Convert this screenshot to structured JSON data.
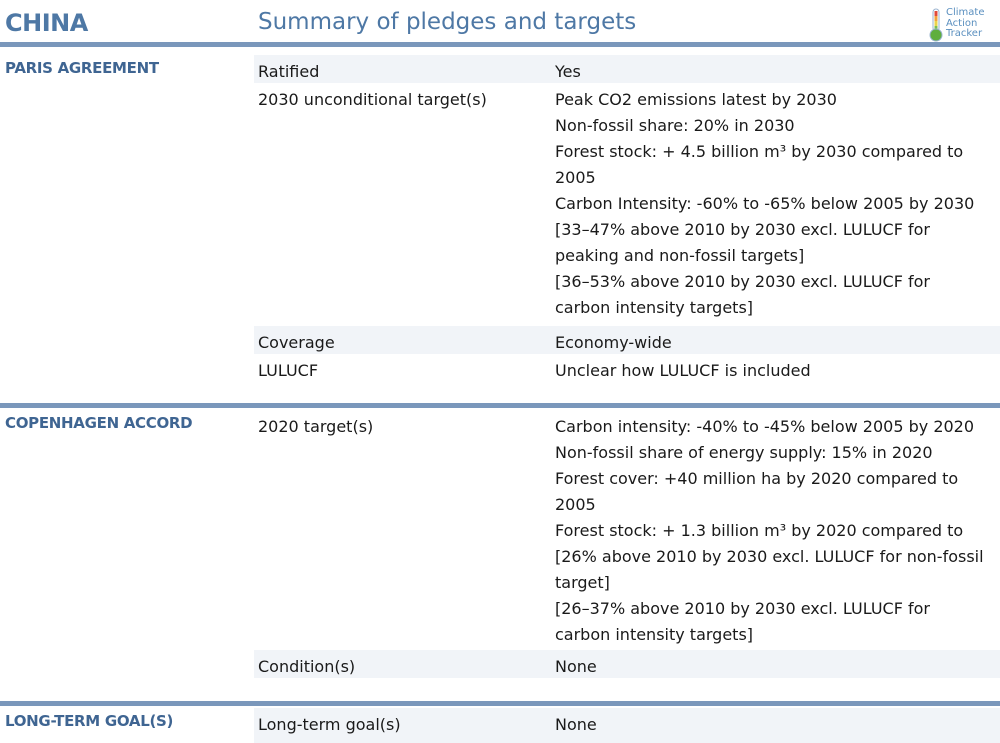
{
  "header": {
    "country": "CHINA",
    "title": "Summary of pledges and targets",
    "logo_lines": [
      "Climate",
      "Action",
      "Tracker"
    ]
  },
  "sections": [
    {
      "label": "PARIS AGREEMENT",
      "rows": [
        {
          "label": "Ratified",
          "lines": [
            "Yes"
          ]
        },
        {
          "label": "2030 unconditional target(s)",
          "lines": [
            "Peak CO2 emissions latest by 2030",
            "Non-fossil share: 20% in 2030",
            "Forest stock: + 4.5 billion m³ by 2030 compared to",
            "2005",
            "Carbon Intensity: -60% to -65% below 2005 by 2030",
            "[33–47% above 2010 by 2030 excl. LULUCF for",
            "peaking and non-fossil targets]",
            "[36–53% above 2010 by 2030 excl. LULUCF for",
            "carbon intensity targets]"
          ]
        },
        {
          "label": "Coverage",
          "lines": [
            "Economy-wide"
          ]
        },
        {
          "label": "LULUCF",
          "lines": [
            "Unclear how LULUCF is included"
          ]
        }
      ]
    },
    {
      "label": "COPENHAGEN ACCORD",
      "rows": [
        {
          "label": "2020 target(s)",
          "lines": [
            "Carbon intensity: -40% to -45% below 2005 by 2020",
            "Non-fossil share of energy supply: 15% in 2020",
            "Forest cover: +40 million ha by 2020 compared to",
            "2005",
            "Forest stock: + 1.3 billion m³ by 2020 compared to",
            "[26% above 2010 by 2030 excl. LULUCF for non-fossil",
            "target]",
            "[26–37% above 2010 by 2030 excl. LULUCF for",
            "carbon intensity targets]"
          ]
        },
        {
          "label": "Condition(s)",
          "lines": [
            "None"
          ]
        }
      ]
    },
    {
      "label": "LONG-TERM GOAL(S)",
      "rows": [
        {
          "label": "Long-term goal(s)",
          "lines": [
            "None"
          ]
        }
      ]
    }
  ]
}
